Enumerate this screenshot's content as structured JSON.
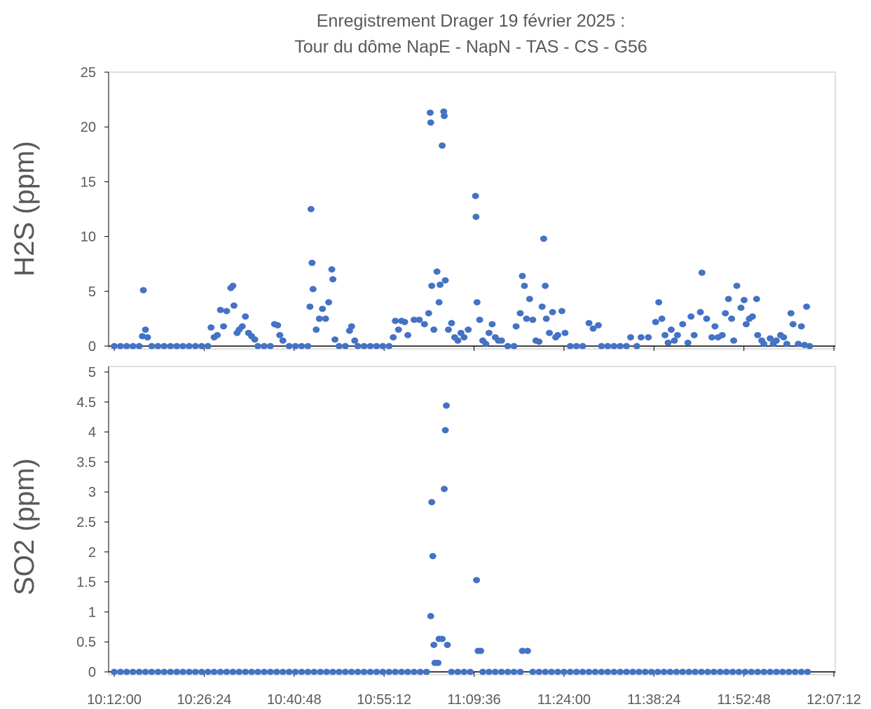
{
  "chart_data": [
    {
      "type": "scatter",
      "title": "Enregistrement Drager  19 février 2025 :",
      "subtitle": "Tour du dôme NapE - NapN - TAS - CS - G56",
      "y_label": "H2S (ppm)",
      "color": "#4472c4",
      "ylim": [
        0,
        25
      ],
      "yticks": [
        0,
        5,
        10,
        15,
        20,
        25
      ],
      "x": [
        "10:12:00",
        "10:13:00",
        "10:14:00",
        "10:15:00",
        "10:16:00",
        "10:16:30",
        "10:16:40",
        "10:17:00",
        "10:17:20",
        "10:18:00",
        "10:19:00",
        "10:20:00",
        "10:21:00",
        "10:22:00",
        "10:23:00",
        "10:24:00",
        "10:25:00",
        "10:26:00",
        "10:27:00",
        "10:27:30",
        "10:28:00",
        "10:28:30",
        "10:29:00",
        "10:29:30",
        "10:30:00",
        "10:30:40",
        "10:31:00",
        "10:31:10",
        "10:31:40",
        "10:32:00",
        "10:32:30",
        "10:33:00",
        "10:33:30",
        "10:34:00",
        "10:34:30",
        "10:35:00",
        "10:36:00",
        "10:37:00",
        "10:37:40",
        "10:38:10",
        "10:38:30",
        "10:39:00",
        "10:40:00",
        "10:41:00",
        "10:42:00",
        "10:43:00",
        "10:43:20",
        "10:43:30",
        "10:43:40",
        "10:43:50",
        "10:44:20",
        "10:44:50",
        "10:45:20",
        "10:45:50",
        "10:46:20",
        "10:46:50",
        "10:47:00",
        "10:47:20",
        "10:48:00",
        "10:49:00",
        "10:49:40",
        "10:50:00",
        "10:50:30",
        "10:51:00",
        "10:52:00",
        "10:53:00",
        "10:54:00",
        "10:55:00",
        "10:56:00",
        "10:56:40",
        "10:57:00",
        "10:57:30",
        "10:58:00",
        "10:58:30",
        "10:59:00",
        "11:00:00",
        "11:00:50",
        "11:01:40",
        "11:02:20",
        "11:02:35",
        "11:02:40",
        "11:02:50",
        "11:03:10",
        "11:03:40",
        "11:04:00",
        "11:04:10",
        "11:04:30",
        "11:04:45",
        "11:04:50",
        "11:05:00",
        "11:05:30",
        "11:06:00",
        "11:06:30",
        "11:07:00",
        "11:07:30",
        "11:08:00",
        "11:08:40",
        "11:09:50",
        "11:09:55",
        "11:10:05",
        "11:10:30",
        "11:11:00",
        "11:11:30",
        "11:12:00",
        "11:12:30",
        "11:13:00",
        "11:13:30",
        "11:14:00",
        "11:15:00",
        "11:16:00",
        "11:16:20",
        "11:17:00",
        "11:17:20",
        "11:17:40",
        "11:18:00",
        "11:18:30",
        "11:19:00",
        "11:19:30",
        "11:20:00",
        "11:20:30",
        "11:20:45",
        "11:21:00",
        "11:21:10",
        "11:21:40",
        "11:22:10",
        "11:22:40",
        "11:23:00",
        "11:23:40",
        "11:24:10",
        "11:25:00",
        "11:26:00",
        "11:27:00",
        "11:28:00",
        "11:28:40",
        "11:29:30",
        "11:30:00",
        "11:31:00",
        "11:32:00",
        "11:33:00",
        "11:34:00",
        "11:34:40",
        "11:35:40",
        "11:36:20",
        "11:37:30",
        "11:38:40",
        "11:39:10",
        "11:39:40",
        "11:40:10",
        "11:40:40",
        "11:41:10",
        "11:41:40",
        "11:42:10",
        "11:43:00",
        "11:43:50",
        "11:44:20",
        "11:44:50",
        "11:45:50",
        "11:46:05",
        "11:46:50",
        "11:47:40",
        "11:48:10",
        "11:48:40",
        "11:49:20",
        "11:49:50",
        "11:50:20",
        "11:50:50",
        "11:51:10",
        "11:51:40",
        "11:52:20",
        "11:52:50",
        "11:53:10",
        "11:53:40",
        "11:54:10",
        "11:54:50",
        "11:55:00",
        "11:55:40",
        "11:56:00",
        "11:57:00",
        "11:57:30",
        "11:58:00",
        "11:58:40",
        "11:59:10",
        "11:59:40",
        "12:00:20",
        "12:00:40",
        "12:01:30",
        "12:02:00",
        "12:02:30",
        "12:02:50",
        "12:03:20"
      ],
      "values": [
        0,
        0,
        0,
        0,
        0,
        0.9,
        5.1,
        1.5,
        0.8,
        0,
        0,
        0,
        0,
        0,
        0,
        0,
        0,
        0,
        0,
        1.7,
        0.8,
        1.0,
        3.3,
        1.8,
        3.2,
        5.3,
        5.5,
        3.7,
        1.2,
        1.5,
        1.8,
        2.7,
        1.2,
        0.9,
        0.6,
        0,
        0,
        0,
        2.0,
        1.9,
        1.0,
        0.5,
        0,
        0,
        0,
        0,
        3.6,
        12.5,
        7.6,
        5.2,
        1.5,
        2.5,
        3.4,
        2.5,
        4.0,
        7.0,
        6.1,
        0.6,
        0,
        0,
        1.4,
        1.8,
        0.5,
        0,
        0,
        0,
        0,
        0,
        0,
        0.8,
        2.3,
        1.5,
        2.3,
        2.2,
        1.0,
        2.4,
        2.4,
        2.0,
        3.0,
        21.3,
        20.4,
        5.5,
        1.5,
        6.8,
        4.0,
        5.6,
        18.3,
        21.4,
        21.0,
        6.0,
        1.5,
        2.1,
        0.8,
        0.5,
        1.2,
        0.8,
        1.5,
        13.7,
        11.8,
        4.0,
        2.4,
        0.5,
        0.2,
        1.2,
        2.0,
        0.8,
        0.5,
        0.5,
        0,
        0,
        1.8,
        3.0,
        6.4,
        5.5,
        2.5,
        4.3,
        2.4,
        0.5,
        0.4,
        3.6,
        9.8,
        5.5,
        2.5,
        1.2,
        3.1,
        0.8,
        1.0,
        3.2,
        1.2,
        0,
        0,
        0,
        2.1,
        1.6,
        1.9,
        0,
        0,
        0,
        0,
        0,
        0.8,
        0,
        0.8,
        0.8,
        2.2,
        4.0,
        2.5,
        1.0,
        0.3,
        1.5,
        0.5,
        1.0,
        2.0,
        0.3,
        2.7,
        1.0,
        3.1,
        6.7,
        2.5,
        0.8,
        1.8,
        0.8,
        1.0,
        3.0,
        4.3,
        2.5,
        0.5,
        5.5,
        3.5,
        4.2,
        2.0,
        2.5,
        2.7,
        4.3,
        1.0,
        0.5,
        0.2,
        0.7,
        0.2,
        0.5,
        1.0,
        0.8,
        0.2,
        3.0,
        2.0,
        0.2,
        1.8,
        0.1,
        3.6,
        0
      ]
    },
    {
      "type": "scatter",
      "y_label": "SO2 (ppm)",
      "color": "#4472c4",
      "ylim": [
        0,
        5
      ],
      "yticks": [
        0,
        0.5,
        1,
        1.5,
        2,
        2.5,
        3,
        3.5,
        4,
        4.5,
        5
      ],
      "xlim": [
        "10:12:00",
        "12:07:12"
      ],
      "xticks": [
        "10:12:00",
        "10:26:24",
        "10:40:48",
        "10:55:12",
        "11:09:36",
        "11:24:00",
        "11:38:24",
        "11:52:48",
        "12:07:12"
      ],
      "x": [
        "10:12:00",
        "10:13:00",
        "10:14:00",
        "10:15:00",
        "10:16:00",
        "10:17:00",
        "10:18:00",
        "10:19:00",
        "10:20:00",
        "10:21:00",
        "10:22:00",
        "10:23:00",
        "10:24:00",
        "10:25:00",
        "10:26:00",
        "10:27:00",
        "10:28:00",
        "10:29:00",
        "10:30:00",
        "10:31:00",
        "10:32:00",
        "10:33:00",
        "10:34:00",
        "10:35:00",
        "10:36:00",
        "10:37:00",
        "10:38:00",
        "10:39:00",
        "10:40:00",
        "10:41:00",
        "10:42:00",
        "10:43:00",
        "10:44:00",
        "10:45:00",
        "10:46:00",
        "10:47:00",
        "10:48:00",
        "10:49:00",
        "10:50:00",
        "10:51:00",
        "10:52:00",
        "10:53:00",
        "10:54:00",
        "10:55:00",
        "10:56:00",
        "10:57:00",
        "10:58:00",
        "10:59:00",
        "11:00:00",
        "11:01:00",
        "11:02:00",
        "11:02:40",
        "11:02:50",
        "11:03:00",
        "11:03:10",
        "11:03:20",
        "11:03:50",
        "11:04:00",
        "11:04:30",
        "11:04:50",
        "11:05:00",
        "11:05:10",
        "11:05:20",
        "11:06:00",
        "11:07:00",
        "11:08:00",
        "11:09:00",
        "11:10:00",
        "11:10:15",
        "11:10:40",
        "11:11:00",
        "11:12:00",
        "11:13:00",
        "11:14:00",
        "11:15:00",
        "11:16:00",
        "11:17:00",
        "11:17:20",
        "11:18:10",
        "11:19:00",
        "11:20:00",
        "11:21:00",
        "11:22:00",
        "11:23:00",
        "11:24:00",
        "11:25:00",
        "11:26:00",
        "11:27:00",
        "11:28:00",
        "11:29:00",
        "11:30:00",
        "11:31:00",
        "11:32:00",
        "11:33:00",
        "11:34:00",
        "11:35:00",
        "11:36:00",
        "11:37:00",
        "11:38:00",
        "11:39:00",
        "11:40:00",
        "11:41:00",
        "11:42:00",
        "11:43:00",
        "11:44:00",
        "11:45:00",
        "11:46:00",
        "11:47:00",
        "11:48:00",
        "11:49:00",
        "11:50:00",
        "11:51:00",
        "11:52:00",
        "11:53:00",
        "11:54:00",
        "11:55:00",
        "11:56:00",
        "11:57:00",
        "11:58:00",
        "11:59:00",
        "12:00:00",
        "12:01:00",
        "12:02:00",
        "12:03:00"
      ],
      "values": [
        0,
        0,
        0,
        0,
        0,
        0,
        0,
        0,
        0,
        0,
        0,
        0,
        0,
        0,
        0,
        0,
        0,
        0,
        0,
        0,
        0,
        0,
        0,
        0,
        0,
        0,
        0,
        0,
        0,
        0,
        0,
        0,
        0,
        0,
        0,
        0,
        0,
        0,
        0,
        0,
        0,
        0,
        0,
        0,
        0,
        0,
        0,
        0,
        0,
        0,
        0,
        0.93,
        2.83,
        1.93,
        0.45,
        0.15,
        0.15,
        0.55,
        0.55,
        3.05,
        4.03,
        4.44,
        0.45,
        0,
        0,
        0,
        0,
        1.53,
        0.35,
        0.35,
        0,
        0,
        0,
        0,
        0,
        0,
        0,
        0.35,
        0.35,
        0,
        0,
        0,
        0,
        0,
        0,
        0,
        0,
        0,
        0,
        0,
        0,
        0,
        0,
        0,
        0,
        0,
        0,
        0,
        0,
        0,
        0,
        0,
        0,
        0,
        0,
        0,
        0,
        0,
        0,
        0,
        0,
        0,
        0,
        0,
        0,
        0,
        0,
        0,
        0,
        0,
        0,
        0,
        0,
        0
      ]
    }
  ]
}
